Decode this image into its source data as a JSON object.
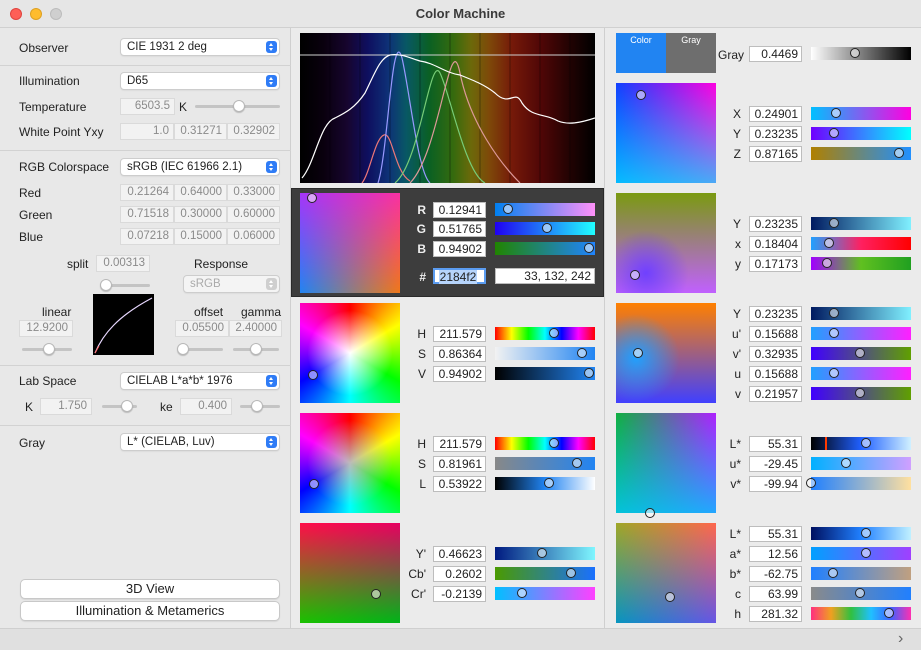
{
  "window": {
    "title": "Color Machine"
  },
  "left": {
    "observer": {
      "label": "Observer",
      "value": "CIE 1931 2 deg"
    },
    "illumination": {
      "label": "Illumination",
      "value": "D65"
    },
    "temperature": {
      "label": "Temperature",
      "value": "6503.5",
      "unit": "K"
    },
    "white_point": {
      "label": "White Point Yxy",
      "values": [
        "1.0",
        "0.31271",
        "0.32902"
      ]
    },
    "rgb_colorspace": {
      "label": "RGB Colorspace",
      "value": "sRGB (IEC 61966 2.1)"
    },
    "red": {
      "label": "Red",
      "values": [
        "0.21264",
        "0.64000",
        "0.33000"
      ]
    },
    "green": {
      "label": "Green",
      "values": [
        "0.71518",
        "0.30000",
        "0.60000"
      ]
    },
    "blue": {
      "label": "Blue",
      "values": [
        "0.07218",
        "0.15000",
        "0.06000"
      ]
    },
    "split": {
      "label": "split",
      "value": "0.00313"
    },
    "response": {
      "label": "Response",
      "value": "sRGB"
    },
    "linear": {
      "label": "linear",
      "value": "12.9200"
    },
    "offset": {
      "label": "offset",
      "value": "0.05500"
    },
    "gamma": {
      "label": "gamma",
      "value": "2.40000"
    },
    "lab_space": {
      "label": "Lab Space",
      "value": "CIELAB L*a*b* 1976"
    },
    "k": {
      "label": "K",
      "value": "1.750"
    },
    "ke": {
      "label": "ke",
      "value": "0.400"
    },
    "gray": {
      "label": "Gray",
      "value": "L* (CIELAB, Luv)"
    },
    "view3d_button": "3D View",
    "metamerics_button": "Illumination & Metamerics"
  },
  "rgb": {
    "R": {
      "label": "R",
      "value": "0.12941"
    },
    "G": {
      "label": "G",
      "value": "0.51765"
    },
    "B": {
      "label": "B",
      "value": "0.94902"
    },
    "hex": {
      "label": "#",
      "value": "2184f2"
    },
    "triplet": "33, 132, 242"
  },
  "hsv": {
    "H": {
      "label": "H",
      "value": "211.579"
    },
    "S": {
      "label": "S",
      "value": "0.86364"
    },
    "V": {
      "label": "V",
      "value": "0.94902"
    }
  },
  "hsl": {
    "H": {
      "label": "H",
      "value": "211.579"
    },
    "S": {
      "label": "S",
      "value": "0.81961"
    },
    "L": {
      "label": "L",
      "value": "0.53922"
    }
  },
  "ycbcr": {
    "Y": {
      "label": "Y'",
      "value": "0.46623"
    },
    "Cb": {
      "label": "Cb'",
      "value": "0.2602"
    },
    "Cr": {
      "label": "Cr'",
      "value": "-0.2139"
    }
  },
  "swatch": {
    "color_label": "Color",
    "gray_label": "Gray",
    "color": "#2184f2",
    "gray_color": "#6e6e6e"
  },
  "gray_value": {
    "label": "Gray",
    "value": "0.4469"
  },
  "xyz": {
    "X": {
      "label": "X",
      "value": "0.24901"
    },
    "Y": {
      "label": "Y",
      "value": "0.23235"
    },
    "Z": {
      "label": "Z",
      "value": "0.87165"
    }
  },
  "yxy": {
    "Y": {
      "label": "Y",
      "value": "0.23235"
    },
    "x": {
      "label": "x",
      "value": "0.18404"
    },
    "y": {
      "label": "y",
      "value": "0.17173"
    }
  },
  "yuv": {
    "Y": {
      "label": "Y",
      "value": "0.23235"
    },
    "u_prime": {
      "label": "u'",
      "value": "0.15688"
    },
    "v_prime": {
      "label": "v'",
      "value": "0.32935"
    },
    "u": {
      "label": "u",
      "value": "0.15688"
    },
    "v": {
      "label": "v",
      "value": "0.21957"
    }
  },
  "luv": {
    "L": {
      "label": "L*",
      "value": "55.31"
    },
    "u": {
      "label": "u*",
      "value": "-29.45"
    },
    "v": {
      "label": "v*",
      "value": "-99.94"
    }
  },
  "lab": {
    "L": {
      "label": "L*",
      "value": "55.31"
    },
    "a": {
      "label": "a*",
      "value": "12.56"
    },
    "b": {
      "label": "b*",
      "value": "-62.75"
    },
    "c": {
      "label": "c",
      "value": "63.99"
    },
    "h": {
      "label": "h",
      "value": "281.32"
    }
  }
}
